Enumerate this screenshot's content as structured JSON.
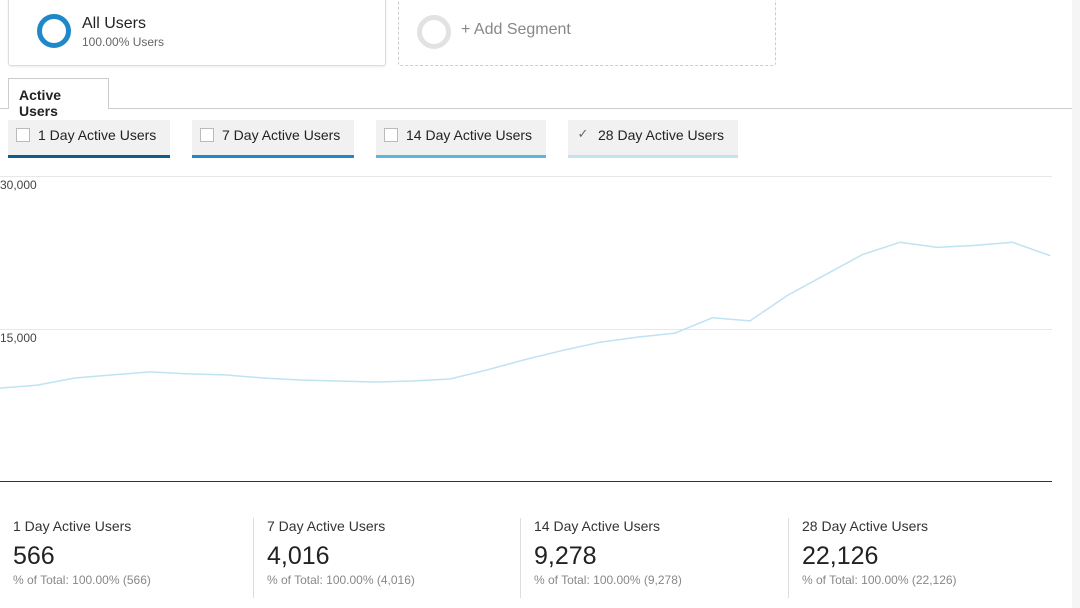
{
  "segments": {
    "all_users": {
      "title": "All Users",
      "subtitle": "100.00% Users"
    },
    "add_label": "+ Add Segment"
  },
  "tab": "Active Users",
  "metrics": [
    {
      "label": "1 Day Active Users",
      "checked": false,
      "color": "#0d5e8c"
    },
    {
      "label": "7 Day Active Users",
      "checked": false,
      "color": "#1e88c8"
    },
    {
      "label": "14 Day Active Users",
      "checked": false,
      "color": "#5fb4de"
    },
    {
      "label": "28 Day Active Users",
      "checked": true,
      "color": "#bfe3f2"
    }
  ],
  "checkmark": "✓",
  "chart_data": {
    "type": "line",
    "yticks": [
      "30,000",
      "15,000"
    ],
    "ylim": [
      0,
      30000
    ],
    "grid": true,
    "series": [
      {
        "color": "#bfe3f2",
        "values": [
          9200,
          9500,
          10200,
          10500,
          10800,
          10600,
          10500,
          10200,
          10000,
          9900,
          9800,
          9900,
          10100,
          11000,
          12000,
          12900,
          13700,
          14200,
          14600,
          16100,
          15800,
          18300,
          20300,
          22300,
          23500,
          23000,
          23200,
          23500,
          22200
        ]
      }
    ]
  },
  "summary": [
    {
      "label": "1 Day Active Users",
      "value": "566",
      "pct": "% of Total: 100.00% (566)"
    },
    {
      "label": "7 Day Active Users",
      "value": "4,016",
      "pct": "% of Total: 100.00% (4,016)"
    },
    {
      "label": "14 Day Active Users",
      "value": "9,278",
      "pct": "% of Total: 100.00% (9,278)"
    },
    {
      "label": "28 Day Active Users",
      "value": "22,126",
      "pct": "% of Total: 100.00% (22,126)"
    }
  ]
}
